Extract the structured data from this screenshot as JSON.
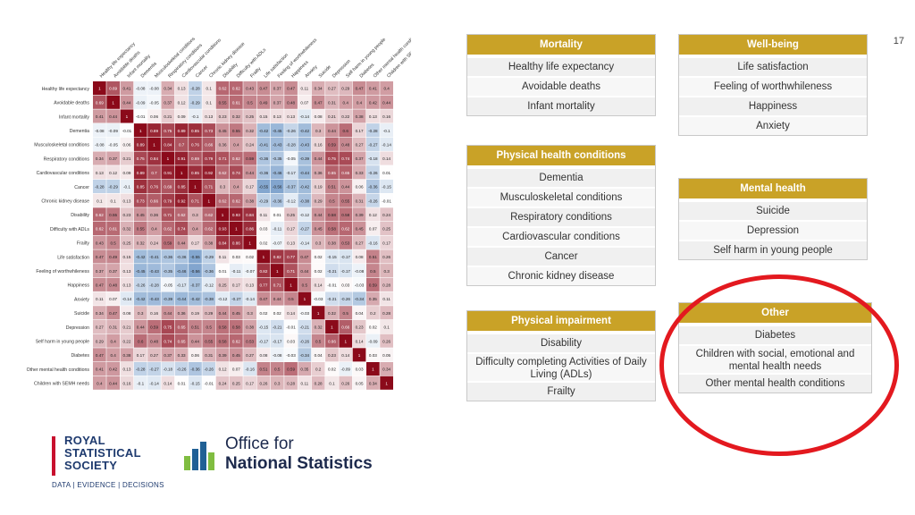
{
  "page_number": "17",
  "heatmap": {
    "labels": [
      "Healthy life expectancy",
      "Avoidable deaths",
      "Infant mortality",
      "Dementia",
      "Musculoskeletal conditions",
      "Respiratory conditions",
      "Cardiovascular conditions",
      "Cancer",
      "Chronic kidney disease",
      "Disability",
      "Difficulty with ADLs",
      "Frailty",
      "Life satisfaction",
      "Feeling of worthwhileness",
      "Happiness",
      "Anxiety",
      "Suicide",
      "Depression",
      "Self harm in young people",
      "Diabetes",
      "Other mental health conditions",
      "Children with SEMH needs"
    ],
    "values": [
      [
        1,
        0.69,
        0.41,
        -0.08,
        -0.08,
        0.34,
        0.13,
        -0.28,
        0.1,
        0.62,
        0.62,
        0.43,
        0.47,
        0.37,
        0.47,
        0.11,
        0.34,
        0.27,
        0.29,
        0.47,
        0.41,
        0.4
      ],
      [
        0.69,
        1,
        0.44,
        -0.09,
        -0.05,
        0.37,
        0.12,
        -0.29,
        0.1,
        0.55,
        0.61,
        0.5,
        0.49,
        0.37,
        0.48,
        0.07,
        0.47,
        0.31,
        0.4,
        0.4,
        0.42,
        0.44
      ],
      [
        0.41,
        0.44,
        1,
        -0.01,
        0.06,
        0.21,
        0.09,
        -0.1,
        0.13,
        0.23,
        0.32,
        0.25,
        0.15,
        0.13,
        0.13,
        -0.14,
        0.08,
        0.21,
        0.22,
        0.38,
        0.13,
        0.16
      ],
      [
        -0.08,
        -0.09,
        -0.01,
        1,
        0.89,
        0.75,
        0.89,
        0.85,
        0.73,
        0.45,
        0.55,
        0.32,
        -0.42,
        -0.45,
        -0.26,
        -0.42,
        0.3,
        0.44,
        0.6,
        0.17,
        -0.28,
        -0.1
      ],
      [
        -0.08,
        -0.05,
        0.06,
        0.89,
        1,
        0.84,
        0.7,
        0.76,
        0.66,
        0.36,
        0.4,
        0.24,
        -0.41,
        -0.43,
        -0.28,
        -0.43,
        0.16,
        0.59,
        0.48,
        0.27,
        -0.27,
        -0.14
      ],
      [
        0.34,
        0.37,
        0.21,
        0.75,
        0.84,
        1,
        0.91,
        0.69,
        0.79,
        0.71,
        0.62,
        0.59,
        -0.36,
        -0.35,
        -0.05,
        -0.39,
        0.44,
        0.75,
        0.74,
        0.37,
        -0.18,
        0.14
      ],
      [
        0.13,
        0.12,
        0.09,
        0.89,
        0.7,
        0.91,
        1,
        0.85,
        0.92,
        0.62,
        0.74,
        0.44,
        -0.36,
        -0.46,
        -0.17,
        -0.44,
        0.36,
        0.65,
        0.65,
        0.33,
        -0.26,
        0.01
      ],
      [
        -0.28,
        -0.29,
        -0.1,
        0.85,
        0.76,
        0.69,
        0.85,
        1,
        0.71,
        0.3,
        0.4,
        0.17,
        -0.55,
        -0.56,
        -0.37,
        -0.42,
        0.19,
        0.51,
        0.44,
        0.06,
        -0.36,
        -0.15
      ],
      [
        0.1,
        0.1,
        0.13,
        0.73,
        0.66,
        0.79,
        0.92,
        0.71,
        1,
        0.62,
        0.62,
        0.38,
        -0.29,
        -0.36,
        -0.12,
        -0.38,
        0.29,
        0.5,
        0.55,
        0.31,
        -0.26,
        -0.01
      ],
      [
        0.62,
        0.55,
        0.23,
        0.45,
        0.36,
        0.71,
        0.62,
        0.3,
        0.62,
        1,
        0.93,
        0.84,
        0.11,
        0.01,
        0.25,
        -0.12,
        0.44,
        0.58,
        0.58,
        0.39,
        0.12,
        0.24
      ],
      [
        0.62,
        0.61,
        0.32,
        0.55,
        0.4,
        0.62,
        0.74,
        0.4,
        0.62,
        0.93,
        1,
        0.86,
        0.03,
        -0.11,
        0.17,
        -0.27,
        0.45,
        0.58,
        0.62,
        0.45,
        0.07,
        0.25
      ],
      [
        0.43,
        0.5,
        0.25,
        0.32,
        0.24,
        0.59,
        0.44,
        0.17,
        0.38,
        0.84,
        0.86,
        1,
        0.02,
        -0.07,
        0.13,
        -0.14,
        0.3,
        0.38,
        0.53,
        0.27,
        -0.16,
        0.17
      ],
      [
        0.47,
        0.49,
        0.15,
        -0.42,
        -0.41,
        -0.36,
        -0.36,
        -0.55,
        -0.29,
        0.11,
        0.03,
        0.02,
        1,
        0.82,
        0.77,
        0.47,
        0.02,
        -0.15,
        -0.17,
        0.08,
        0.51,
        0.26
      ],
      [
        0.37,
        0.37,
        0.13,
        -0.45,
        -0.43,
        -0.35,
        -0.46,
        -0.56,
        -0.36,
        0.01,
        -0.11,
        -0.07,
        0.82,
        1,
        0.71,
        0.44,
        0.02,
        -0.21,
        -0.17,
        -0.08,
        0.5,
        0.3
      ],
      [
        0.47,
        0.48,
        0.13,
        -0.26,
        -0.28,
        -0.05,
        -0.17,
        -0.37,
        -0.12,
        0.25,
        0.17,
        0.13,
        0.77,
        0.71,
        1,
        0.5,
        0.14,
        -0.01,
        0.03,
        -0.03,
        0.59,
        0.28
      ],
      [
        0.11,
        0.07,
        -0.14,
        -0.42,
        -0.43,
        -0.39,
        -0.44,
        -0.42,
        -0.38,
        -0.12,
        -0.27,
        -0.14,
        0.47,
        0.44,
        0.5,
        1,
        -0.03,
        -0.21,
        -0.26,
        -0.34,
        0.35,
        0.11
      ],
      [
        0.34,
        0.47,
        0.08,
        0.3,
        0.16,
        0.44,
        0.36,
        0.19,
        0.29,
        0.44,
        0.45,
        0.3,
        0.02,
        0.02,
        0.14,
        -0.03,
        1,
        0.32,
        0.5,
        0.04,
        0.2,
        0.28
      ],
      [
        0.27,
        0.31,
        0.21,
        0.44,
        0.59,
        0.75,
        0.65,
        0.51,
        0.5,
        0.58,
        0.58,
        0.38,
        -0.15,
        -0.21,
        -0.01,
        -0.21,
        0.32,
        1,
        0.66,
        0.23,
        0.02,
        0.1
      ],
      [
        0.29,
        0.4,
        0.22,
        0.6,
        0.48,
        0.74,
        0.65,
        0.44,
        0.55,
        0.58,
        0.62,
        0.53,
        -0.17,
        -0.17,
        0.03,
        -0.26,
        0.5,
        0.66,
        1,
        0.14,
        -0.09,
        0.26
      ],
      [
        0.47,
        0.4,
        0.38,
        0.17,
        0.27,
        0.37,
        0.33,
        0.06,
        0.31,
        0.39,
        0.45,
        0.27,
        0.08,
        -0.08,
        -0.03,
        -0.34,
        0.04,
        0.23,
        0.14,
        1,
        0.03,
        0.05
      ],
      [
        0.41,
        0.42,
        0.13,
        -0.28,
        -0.27,
        -0.18,
        -0.26,
        -0.36,
        -0.26,
        0.12,
        0.07,
        -0.16,
        0.51,
        0.5,
        0.59,
        0.35,
        0.2,
        0.02,
        -0.09,
        0.03,
        1,
        0.34
      ],
      [
        0.4,
        0.44,
        0.16,
        -0.1,
        -0.14,
        0.14,
        0.01,
        -0.15,
        -0.01,
        0.24,
        0.25,
        0.17,
        0.26,
        0.3,
        0.28,
        0.11,
        0.28,
        0.1,
        0.26,
        0.05,
        0.34,
        1
      ]
    ]
  },
  "panels": {
    "mortality": {
      "title": "Mortality",
      "items": [
        "Healthy life expectancy",
        "Avoidable deaths",
        "Infant mortality"
      ]
    },
    "physical_health": {
      "title": "Physical health conditions",
      "items": [
        "Dementia",
        "Musculoskeletal conditions",
        "Respiratory conditions",
        "Cardiovascular conditions",
        "Cancer",
        "Chronic kidney disease"
      ]
    },
    "physical_impairment": {
      "title": "Physical impairment",
      "items": [
        "Disability",
        "Difficulty completing Activities of Daily Living (ADLs)",
        "Frailty"
      ]
    },
    "wellbeing": {
      "title": "Well-being",
      "items": [
        "Life satisfaction",
        "Feeling of worthwhileness",
        "Happiness",
        "Anxiety"
      ]
    },
    "mental_health": {
      "title": "Mental health",
      "items": [
        "Suicide",
        "Depression",
        "Self harm in young people"
      ]
    },
    "other": {
      "title": "Other",
      "items": [
        "Diabetes",
        "Children with social, emotional and mental health needs",
        "Other mental health conditions"
      ]
    }
  },
  "logos": {
    "rss_name": [
      "ROYAL",
      "STATISTICAL",
      "SOCIETY"
    ],
    "rss_tagline": "DATA | EVIDENCE | DECISIONS",
    "ons_line1": "Office for",
    "ons_line2": "National Statistics"
  },
  "colors": {
    "accent_gold": "#c9a227",
    "highlight_red": "#e3191f",
    "positive": "#8b0a1a",
    "negative": "#1f5fa8"
  }
}
